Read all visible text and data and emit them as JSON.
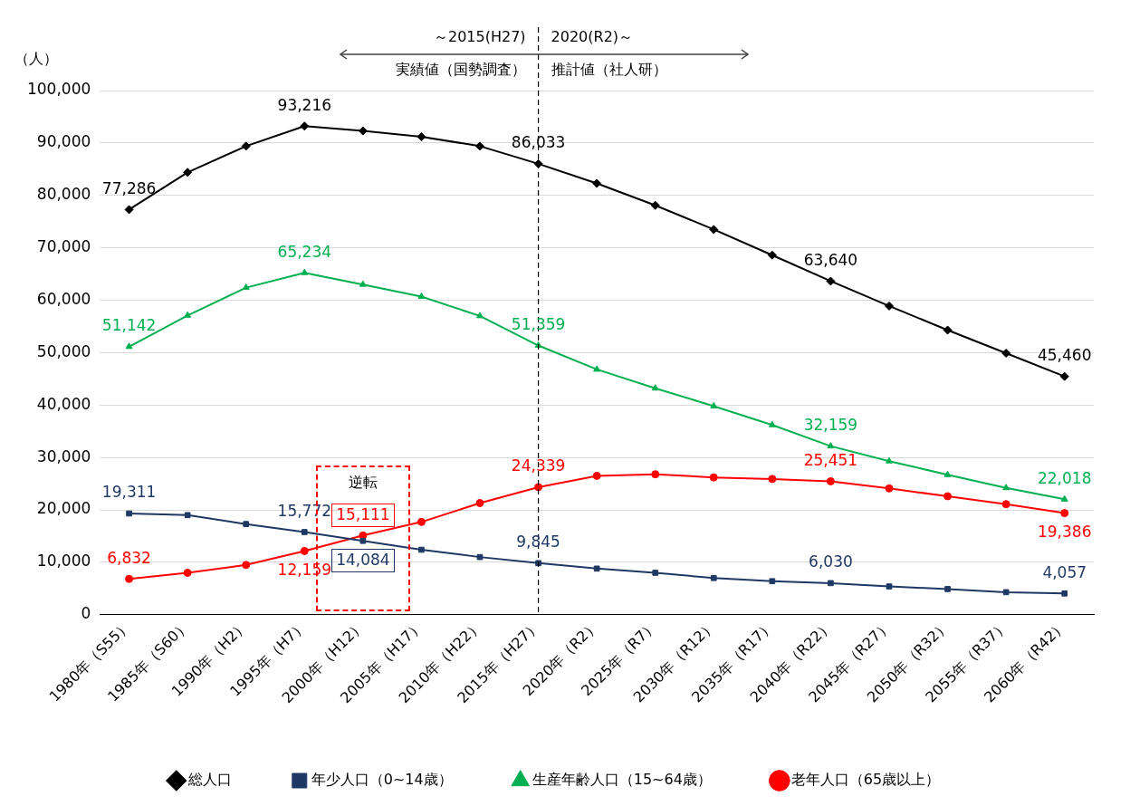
{
  "chart_data": {
    "type": "line",
    "ylabel": "（人）",
    "categories": [
      "1980年（S55）",
      "1985年（S60）",
      "1990年（H2）",
      "1995年（H7）",
      "2000年（H12）",
      "2005年（H17）",
      "2010年（H22）",
      "2015年（H27）",
      "2020年（R2）",
      "2025年（R7）",
      "2030年（R12）",
      "2035年（R17）",
      "2040年（R22）",
      "2045年（R27）",
      "2050年（R32）",
      "2055年（R37）",
      "2060年（R42）"
    ],
    "series": [
      {
        "name": "総人口",
        "color": "#000000",
        "marker": "diamond",
        "values": [
          77286,
          84400,
          89400,
          93216,
          92300,
          91200,
          89400,
          86033,
          82300,
          78100,
          73500,
          68600,
          63640,
          58900,
          54300,
          49900,
          45460
        ],
        "value_labels": [
          "77,286",
          null,
          null,
          "93,216",
          null,
          null,
          null,
          "86,033",
          null,
          null,
          null,
          null,
          "63,640",
          null,
          null,
          null,
          "45,460"
        ]
      },
      {
        "name": "年少人口（0~14歳）",
        "color": "#1f3864",
        "marker": "square",
        "values": [
          19311,
          19000,
          17300,
          15772,
          14084,
          12400,
          11000,
          9845,
          8800,
          8000,
          7000,
          6400,
          6030,
          5400,
          4900,
          4300,
          4057
        ],
        "value_labels": [
          "19,311",
          null,
          null,
          "15,772",
          "14,084",
          null,
          null,
          "9,845",
          null,
          null,
          null,
          null,
          "6,030",
          null,
          null,
          null,
          "4,057"
        ]
      },
      {
        "name": "生産年齢人口（15~64歳）",
        "color": "#00b050",
        "marker": "triangle",
        "values": [
          51142,
          57100,
          62400,
          65234,
          63000,
          60700,
          57000,
          51359,
          46800,
          43200,
          39800,
          36200,
          32159,
          29300,
          26700,
          24200,
          22018
        ],
        "value_labels": [
          "51,142",
          null,
          null,
          "65,234",
          null,
          null,
          null,
          "51,359",
          null,
          null,
          null,
          null,
          "32,159",
          null,
          null,
          null,
          "22,018"
        ]
      },
      {
        "name": "老年人口（65歳以上）",
        "color": "#ff0000",
        "marker": "circle",
        "values": [
          6832,
          8000,
          9500,
          12159,
          15111,
          17700,
          21300,
          24339,
          26500,
          26800,
          26200,
          25900,
          25451,
          24100,
          22600,
          21100,
          19386
        ],
        "value_labels": [
          "6,832",
          null,
          null,
          "12,159",
          "15,111",
          null,
          null,
          "24,339",
          null,
          null,
          null,
          null,
          "25,451",
          null,
          null,
          null,
          "19,386"
        ]
      }
    ],
    "ylim": [
      0,
      100000
    ],
    "yticks": [
      {
        "value": 0,
        "label": "0"
      },
      {
        "value": 10000,
        "label": "10,000"
      },
      {
        "value": 20000,
        "label": "20,000"
      },
      {
        "value": 30000,
        "label": "30,000"
      },
      {
        "value": 40000,
        "label": "40,000"
      },
      {
        "value": 50000,
        "label": "50,000"
      },
      {
        "value": 60000,
        "label": "60,000"
      },
      {
        "value": 70000,
        "label": "70,000"
      },
      {
        "value": 80000,
        "label": "80,000"
      },
      {
        "value": 90000,
        "label": "90,000"
      },
      {
        "value": 100000,
        "label": "100,000"
      }
    ],
    "grid": "y",
    "legend": "bottom",
    "line_style": "solid",
    "ref_lines": [
      {
        "axis": "x",
        "value": "2015年（H27）",
        "line_style": "dashed",
        "color": "#000000"
      }
    ],
    "annotations": [
      "～2015(H27)",
      "実績値（国勢調査）",
      "2020(R2)～",
      "推計値（社人研）",
      "逆転"
    ]
  }
}
